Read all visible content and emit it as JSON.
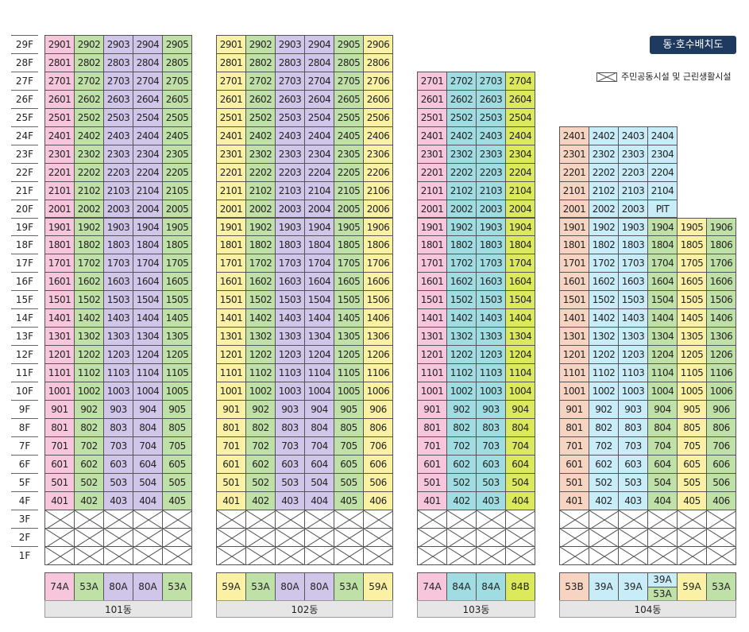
{
  "title": "동·호수배치도",
  "legend": {
    "label": "주민공동시설 및 근린생활시설"
  },
  "colors": {
    "74A": "#f7c6dd",
    "53A": "#bfe0a6",
    "80A": "#cfc6ea",
    "59A": "#fbf1a4",
    "84A": "#9fdde3",
    "84B": "#dde95d",
    "53B": "#f7d3c1",
    "39A": "#c9ecf9"
  },
  "floors": [
    "29F",
    "28F",
    "27F",
    "26F",
    "25F",
    "24F",
    "23F",
    "22F",
    "21F",
    "20F",
    "19F",
    "18F",
    "17F",
    "16F",
    "15F",
    "14F",
    "13F",
    "12F",
    "11F",
    "10F",
    "9F",
    "8F",
    "7F",
    "6F",
    "5F",
    "4F",
    "3F",
    "2F",
    "1F"
  ],
  "buildings": [
    {
      "label": "101동",
      "top_floor": 29,
      "columns": [
        {
          "line": "01",
          "type": "74A"
        },
        {
          "line": "02",
          "type": "53A"
        },
        {
          "line": "03",
          "type": "80A"
        },
        {
          "line": "04",
          "type": "80A"
        },
        {
          "line": "05",
          "type": "53A"
        }
      ],
      "type_row": [
        "74A",
        "53A",
        "80A",
        "80A",
        "53A"
      ],
      "overrides": {}
    },
    {
      "label": "102동",
      "top_floor": 29,
      "columns": [
        {
          "line": "01",
          "type": "59A"
        },
        {
          "line": "02",
          "type": "53A"
        },
        {
          "line": "03",
          "type": "80A"
        },
        {
          "line": "04",
          "type": "80A"
        },
        {
          "line": "05",
          "type": "53A"
        },
        {
          "line": "06",
          "type": "59A"
        }
      ],
      "type_row": [
        "59A",
        "53A",
        "80A",
        "80A",
        "53A",
        "59A"
      ],
      "overrides": {}
    },
    {
      "label": "103동",
      "top_floor": 27,
      "columns": [
        {
          "line": "01",
          "type": "74A"
        },
        {
          "line": "02",
          "type": "84A"
        },
        {
          "line": "03",
          "type": "84A"
        },
        {
          "line": "04",
          "type": "84B"
        }
      ],
      "type_row": [
        "74A",
        "84A",
        "84A",
        "84B"
      ],
      "overrides": {}
    },
    {
      "label": "104동",
      "top_floor": 24,
      "columns": [
        {
          "line": "01",
          "type": "53B"
        },
        {
          "line": "02",
          "type": "39A"
        },
        {
          "line": "03",
          "type": "39A"
        },
        {
          "line": "04",
          "type": "39A",
          "alt_type": "53A",
          "alt_from_floor": 19
        },
        {
          "line": "05",
          "type": "59A",
          "max_floor": 19
        },
        {
          "line": "06",
          "type": "53A",
          "max_floor": 19
        }
      ],
      "type_row": [
        "53B",
        "39A",
        "39A",
        [
          "39A",
          "53A"
        ],
        "59A",
        "53A"
      ],
      "overrides": {
        "2004": "PIT"
      }
    }
  ]
}
